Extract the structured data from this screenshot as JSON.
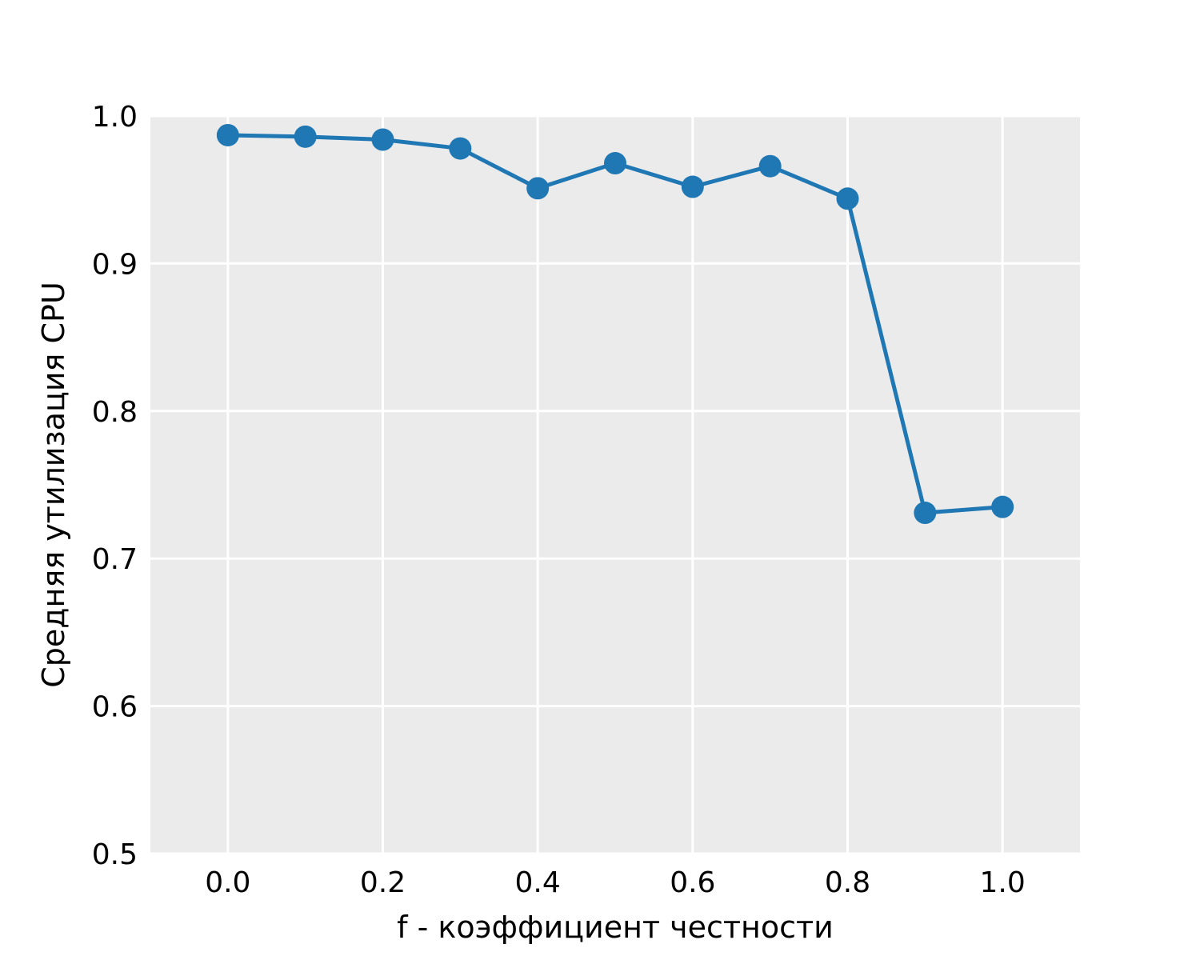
{
  "chart_data": {
    "type": "line",
    "title": "",
    "xlabel": "f - коэффициент честности",
    "ylabel": "Средняя утилизация CPU",
    "xlim": [
      -0.1,
      1.1
    ],
    "ylim": [
      0.5,
      1.0
    ],
    "x_ticks": [
      "0.0",
      "0.2",
      "0.4",
      "0.6",
      "0.8",
      "1.0"
    ],
    "x_tick_values": [
      0.0,
      0.2,
      0.4,
      0.6,
      0.8,
      1.0
    ],
    "y_ticks": [
      "0.5",
      "0.6",
      "0.7",
      "0.8",
      "0.9",
      "1.0"
    ],
    "y_tick_values": [
      0.5,
      0.6,
      0.7,
      0.8,
      0.9,
      1.0
    ],
    "grid": true,
    "background_color": "#ebebeb",
    "series": [
      {
        "color": "#1f77b4",
        "x": [
          0.0,
          0.1,
          0.2,
          0.3,
          0.4,
          0.5,
          0.6,
          0.7,
          0.8,
          0.9,
          1.0
        ],
        "y": [
          0.987,
          0.986,
          0.984,
          0.978,
          0.951,
          0.968,
          0.952,
          0.966,
          0.944,
          0.731,
          0.735
        ]
      }
    ]
  }
}
